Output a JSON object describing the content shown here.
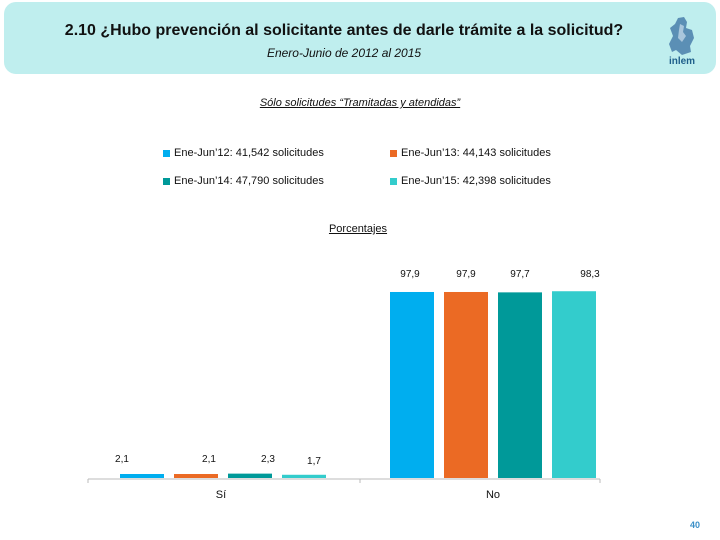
{
  "header": {
    "title": "2.10 ¿Hubo prevención al solicitante antes de darle trámite a la solicitud?",
    "subtitle": "Enero-Junio de 2012 al 2015",
    "logo_text": "inlem"
  },
  "colors": {
    "header_bg": "#bfeeee",
    "series": [
      "#00aeef",
      "#eb6a24",
      "#009999",
      "#33cccc"
    ]
  },
  "chart_data": {
    "type": "bar",
    "title": "Sólo solicitudes “Tramitadas y atendidas”",
    "unit_label": "Porcentajes",
    "categories": [
      "Sí",
      "No"
    ],
    "series": [
      {
        "name": "Ene-Jun’12: 41,542 solicitudes",
        "values": [
          2.1,
          97.9
        ],
        "labels": [
          "2,1",
          "97,9"
        ]
      },
      {
        "name": "Ene-Jun’13: 44,143 solicitudes",
        "values": [
          2.1,
          97.9
        ],
        "labels": [
          "2,1",
          "97,9"
        ]
      },
      {
        "name": "Ene-Jun’14: 47,790 solicitudes",
        "values": [
          2.3,
          97.7
        ],
        "labels": [
          "2,3",
          "97,7"
        ]
      },
      {
        "name": "Ene-Jun’15: 42,398 solicitudes",
        "values": [
          1.7,
          98.3
        ],
        "labels": [
          "1,7",
          "98,3"
        ]
      }
    ],
    "ylim": [
      0,
      100
    ],
    "grid": false,
    "legend": "top"
  },
  "page_number": "40"
}
